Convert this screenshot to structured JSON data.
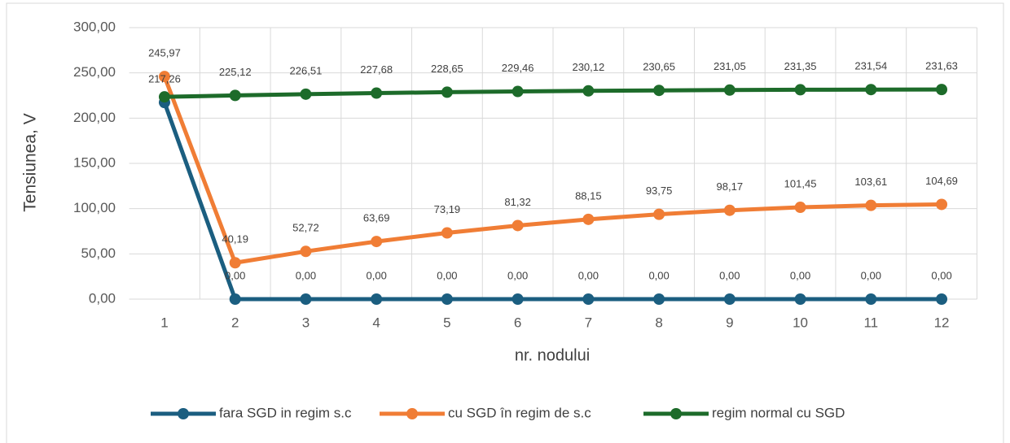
{
  "chart_data": {
    "type": "line",
    "y_label": "Tensiunea, V",
    "x_label": "nr. nodului",
    "categories": [
      "1",
      "2",
      "3",
      "4",
      "5",
      "6",
      "7",
      "8",
      "9",
      "10",
      "11",
      "12"
    ],
    "ylim": [
      0,
      300
    ],
    "yticks": [
      {
        "value": 0,
        "label": "0,00"
      },
      {
        "value": 50,
        "label": "50,00"
      },
      {
        "value": 100,
        "label": "100,00"
      },
      {
        "value": 150,
        "label": "150,00"
      },
      {
        "value": 200,
        "label": "200,00"
      },
      {
        "value": 250,
        "label": "250,00"
      },
      {
        "value": 300,
        "label": "300,00"
      }
    ],
    "grid": true,
    "legend": "bottom",
    "series": [
      {
        "name": "fara SGD in regim s.c",
        "color": "#1b5e80",
        "values": [
          217.26,
          0,
          0,
          0,
          0,
          0,
          0,
          0,
          0,
          0,
          0,
          0
        ],
        "value_labels": [
          "217,26",
          "0,00",
          "0,00",
          "0,00",
          "0,00",
          "0,00",
          "0,00",
          "0,00",
          "0,00",
          "0,00",
          "0,00",
          "0,00"
        ]
      },
      {
        "name": "cu SGD în regim de s.c",
        "color": "#f07d35",
        "values": [
          245.97,
          40.19,
          52.72,
          63.69,
          73.19,
          81.32,
          88.15,
          93.75,
          98.17,
          101.45,
          103.61,
          104.69
        ],
        "value_labels": [
          "245,97",
          "40,19",
          "52,72",
          "63,69",
          "73,19",
          "81,32",
          "88,15",
          "93,75",
          "98,17",
          "101,45",
          "103,61",
          "104,69"
        ]
      },
      {
        "name": "regim normal cu SGD",
        "color": "#1d6b2a",
        "values": [
          223.5,
          225.12,
          226.51,
          227.68,
          228.65,
          229.46,
          230.12,
          230.65,
          231.05,
          231.35,
          231.54,
          231.63
        ],
        "value_labels": [
          null,
          "225,12",
          "226,51",
          "227,68",
          "228,65",
          "229,46",
          "230,12",
          "230,65",
          "231,05",
          "231,35",
          "231,54",
          "231,63"
        ]
      }
    ]
  }
}
